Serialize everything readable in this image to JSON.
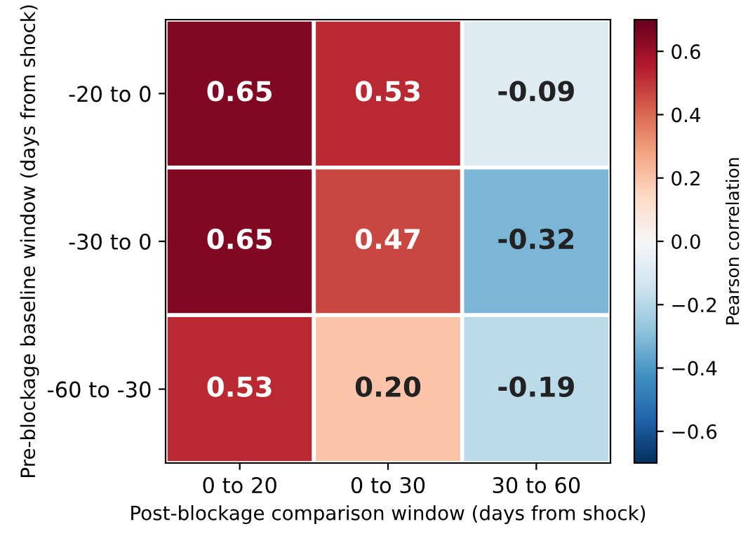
{
  "chart_data": {
    "type": "heatmap",
    "xlabel": "Post-blockage comparison window (days from shock)",
    "ylabel": "Pre-blockage baseline window (days from shock)",
    "clabel": "Pearson correlation",
    "categories": [
      "0 to 20",
      "0 to 30",
      "30 to 60"
    ],
    "y_categories": [
      "-20 to 0",
      "-30 to 0",
      "-60 to -30"
    ],
    "cells": [
      [
        0.65,
        0.53,
        -0.09
      ],
      [
        0.65,
        0.47,
        -0.32
      ],
      [
        0.53,
        0.2,
        -0.19
      ]
    ],
    "cell_labels": [
      [
        "0.65",
        "0.53",
        "-0.09"
      ],
      [
        "0.65",
        "0.47",
        "-0.32"
      ],
      [
        "0.53",
        "0.20",
        "-0.19"
      ]
    ],
    "clim": [
      -0.7,
      0.7
    ],
    "cticks": [
      {
        "value": -0.6,
        "label": "−0.6"
      },
      {
        "value": -0.4,
        "label": "−0.4"
      },
      {
        "value": -0.2,
        "label": "−0.2"
      },
      {
        "value": 0,
        "label": "0.0"
      },
      0.2,
      0.4,
      0.6
    ],
    "grid": false
  }
}
